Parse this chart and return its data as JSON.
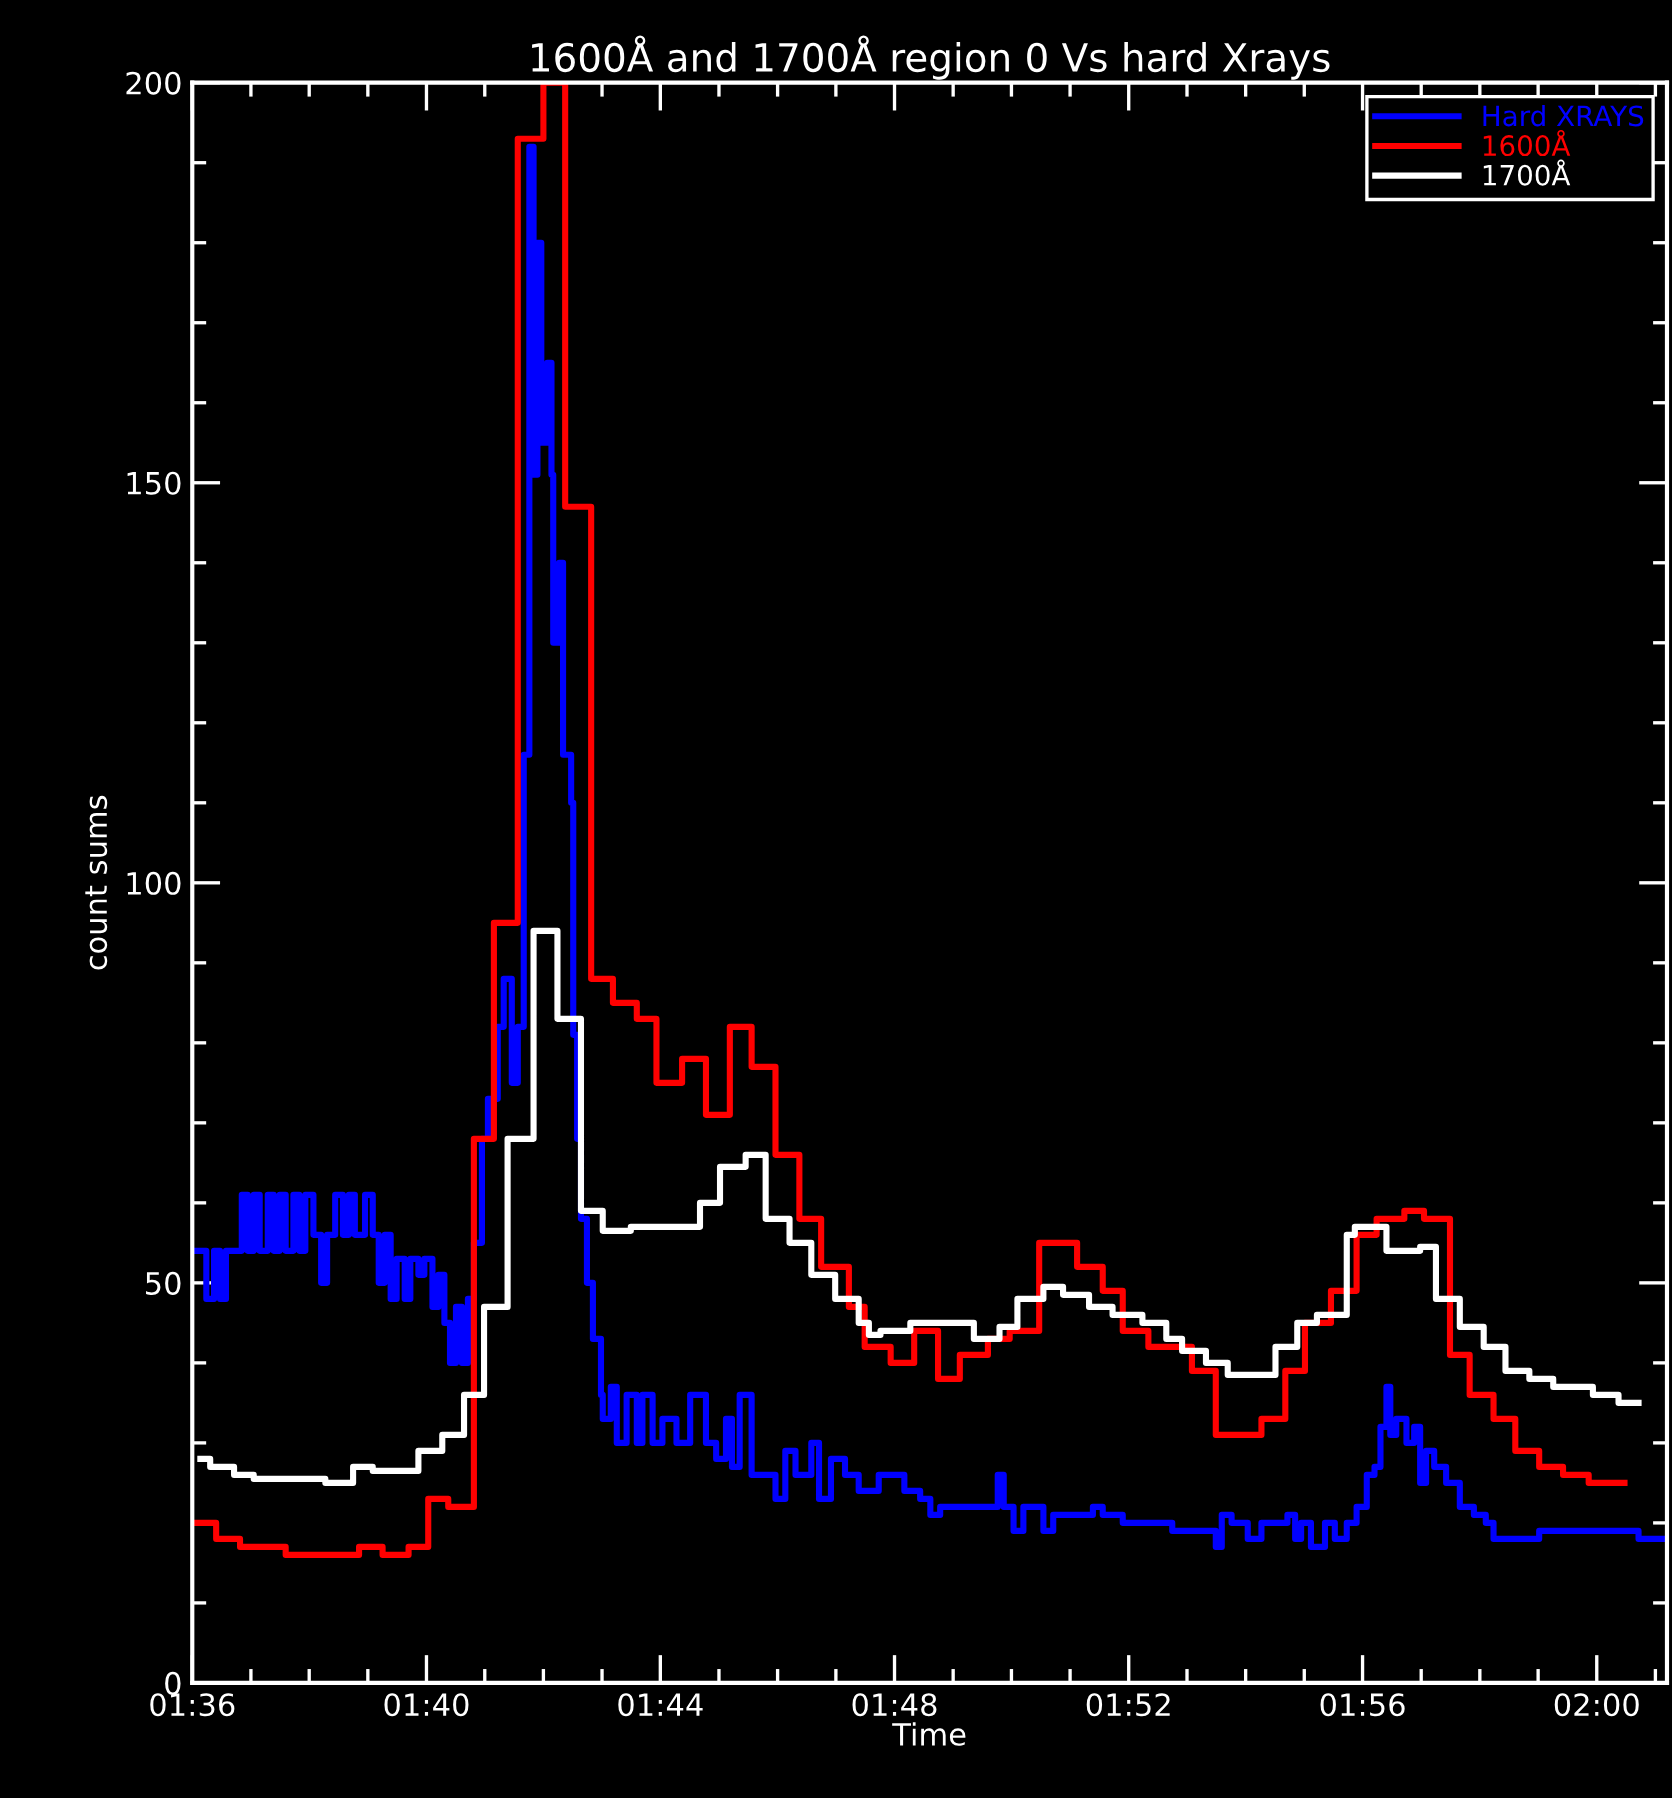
{
  "chart_data": {
    "type": "step",
    "title": "1600Å and 1700Å region 0 Vs hard Xrays",
    "xlabel": "Time",
    "ylabel": "count sums",
    "legend": "top right",
    "xlim": [
      1.6,
      2.02
    ],
    "ylim": [
      0,
      200
    ],
    "xticks": [
      {
        "value": 1.6,
        "label": "01:36"
      },
      {
        "value": 1.6167,
        "label": null
      },
      {
        "value": 1.6333,
        "label": null
      },
      {
        "value": 1.65,
        "label": null
      },
      {
        "value": 1.6667,
        "label": "01:40"
      },
      {
        "value": 1.6833,
        "label": null
      },
      {
        "value": 1.7,
        "label": null
      },
      {
        "value": 1.7167,
        "label": null
      },
      {
        "value": 1.7333,
        "label": "01:44"
      },
      {
        "value": 1.75,
        "label": null
      },
      {
        "value": 1.7667,
        "label": null
      },
      {
        "value": 1.7833,
        "label": null
      },
      {
        "value": 1.8,
        "label": "01:48"
      },
      {
        "value": 1.8167,
        "label": null
      },
      {
        "value": 1.8333,
        "label": null
      },
      {
        "value": 1.85,
        "label": null
      },
      {
        "value": 1.8667,
        "label": "01:52"
      },
      {
        "value": 1.8833,
        "label": null
      },
      {
        "value": 1.9,
        "label": null
      },
      {
        "value": 1.9167,
        "label": null
      },
      {
        "value": 1.9333,
        "label": "01:56"
      },
      {
        "value": 1.95,
        "label": null
      },
      {
        "value": 1.9667,
        "label": null
      },
      {
        "value": 1.9833,
        "label": null
      },
      {
        "value": 2.0,
        "label": "02:00"
      },
      {
        "value": 2.0167,
        "label": null
      }
    ],
    "yticks": [
      0,
      {
        "value": 10,
        "label": null
      },
      {
        "value": 20,
        "label": null
      },
      {
        "value": 30,
        "label": null
      },
      {
        "value": 40,
        "label": null
      },
      50,
      {
        "value": 60,
        "label": null
      },
      {
        "value": 70,
        "label": null
      },
      {
        "value": 80,
        "label": null
      },
      {
        "value": 90,
        "label": null
      },
      100,
      {
        "value": 110,
        "label": null
      },
      {
        "value": 120,
        "label": null
      },
      {
        "value": 130,
        "label": null
      },
      {
        "value": 140,
        "label": null
      },
      150,
      {
        "value": 160,
        "label": null
      },
      {
        "value": 170,
        "label": null
      },
      {
        "value": 180,
        "label": null
      },
      {
        "value": 190,
        "label": null
      },
      200
    ],
    "series": [
      {
        "name": "Hard XRAYS",
        "color": "#0000ff",
        "x": [
          1.6,
          1.604,
          1.6062,
          1.6079,
          1.6096,
          1.6141,
          1.6158,
          1.6175,
          1.6192,
          1.6215,
          1.6232,
          1.6249,
          1.6266,
          1.6288,
          1.6305,
          1.6322,
          1.6345,
          1.6367,
          1.6384,
          1.6407,
          1.6429,
          1.6446,
          1.6463,
          1.6492,
          1.6514,
          1.6531,
          1.6548,
          1.6565,
          1.6582,
          1.6605,
          1.6621,
          1.6644,
          1.6661,
          1.6684,
          1.6701,
          1.6718,
          1.6734,
          1.6751,
          1.6768,
          1.6785,
          1.6802,
          1.6825,
          1.6842,
          1.687,
          1.6887,
          1.691,
          1.6927,
          1.6944,
          1.696,
          1.6972,
          1.6983,
          1.6994,
          1.7011,
          1.7023,
          1.7028,
          1.7045,
          1.7056,
          1.7079,
          1.7085,
          1.7096,
          1.7107,
          1.7124,
          1.7141,
          1.7164,
          1.7169,
          1.7192,
          1.7209,
          1.7237,
          1.7266,
          1.7282,
          1.7311,
          1.7339,
          1.7379,
          1.7418,
          1.7463,
          1.7492,
          1.752,
          1.7537,
          1.7559,
          1.7593,
          1.7661,
          1.7689,
          1.7718,
          1.7763,
          1.7785,
          1.7819,
          1.7859,
          1.7898,
          1.7955,
          1.8028,
          1.8073,
          1.8102,
          1.813,
          1.8294,
          1.8311,
          1.8339,
          1.8367,
          1.8424,
          1.8452,
          1.8565,
          1.8593,
          1.865,
          1.8791,
          1.8915,
          1.8932,
          1.896,
          1.9006,
          1.9045,
          1.9119,
          1.9141,
          1.9158,
          1.9186,
          1.9226,
          1.9254,
          1.9288,
          1.9316,
          1.9345,
          1.9367,
          1.9384,
          1.9401,
          1.9412,
          1.9429,
          1.9458,
          1.948,
          1.9497,
          1.9514,
          1.9537,
          1.9571,
          1.961,
          1.965,
          1.9684,
          1.9706,
          1.9836,
          2.0119,
          2.0195
        ],
        "values": [
          54,
          48,
          54,
          48,
          54,
          61,
          54,
          61,
          54,
          61,
          54,
          61,
          54,
          61,
          54,
          61,
          56,
          50,
          56,
          61,
          56,
          61,
          56,
          61,
          56,
          50,
          56,
          48,
          53,
          48,
          53,
          51,
          53,
          47,
          51,
          45,
          40,
          47,
          40,
          48,
          55,
          68,
          73,
          82,
          88,
          75,
          82,
          116,
          192,
          151,
          180,
          155,
          165,
          151,
          130,
          140,
          116,
          110,
          81,
          68,
          58,
          50,
          43,
          36,
          33,
          37,
          30,
          36,
          30,
          36,
          30,
          33,
          30,
          36,
          30,
          28,
          33,
          27,
          36,
          26,
          23,
          29,
          26,
          30,
          23,
          28,
          26,
          24,
          26,
          24,
          23,
          21,
          22,
          26,
          22,
          19,
          22,
          19,
          21,
          22,
          21,
          20,
          19,
          17,
          21,
          20,
          18,
          20,
          21,
          18,
          20,
          17,
          20,
          18,
          20,
          22,
          26,
          27,
          32,
          37,
          31,
          33,
          30,
          32,
          25,
          29,
          27,
          25,
          22,
          21,
          20,
          18,
          19,
          18,
          18
        ]
      },
      {
        "name": "1600Å",
        "color": "#ff0000",
        "x": [
          1.6,
          1.6068,
          1.6136,
          1.6266,
          1.6475,
          1.6542,
          1.6616,
          1.6672,
          1.6729,
          1.6802,
          1.6859,
          1.6927,
          1.7,
          1.7062,
          1.7136,
          1.7198,
          1.7266,
          1.7322,
          1.7395,
          1.7463,
          1.7531,
          1.7593,
          1.7661,
          1.7729,
          1.7791,
          1.787,
          1.7915,
          1.7989,
          1.8056,
          1.8124,
          1.8186,
          1.8266,
          1.8328,
          1.8412,
          1.852,
          1.8593,
          1.865,
          1.8723,
          1.8847,
          1.8915,
          1.9045,
          1.9113,
          1.9169,
          1.9243,
          1.9316,
          1.9373,
          1.9452,
          1.9508,
          1.9582,
          1.9638,
          1.9706,
          1.9768,
          1.9836,
          1.9904,
          1.9977,
          2.0079
        ],
        "values": [
          20,
          18,
          17,
          16,
          17,
          16,
          17,
          23,
          22,
          68,
          95,
          193,
          200,
          147,
          88,
          85,
          83,
          75,
          78,
          71,
          82,
          77,
          66,
          58,
          52,
          47,
          42,
          40,
          44,
          38,
          41,
          43,
          44,
          55,
          52,
          49,
          44,
          42,
          39,
          31,
          33,
          39,
          45,
          49,
          56,
          58,
          59,
          58,
          41,
          36,
          33,
          29,
          27,
          26,
          25,
          25
        ]
      },
      {
        "name": "1700Å",
        "color": "#ffffff",
        "x": [
          1.6023,
          1.6051,
          1.6119,
          1.6175,
          1.6379,
          1.6458,
          1.6514,
          1.6644,
          1.6712,
          1.6774,
          1.6831,
          1.6898,
          1.6972,
          1.704,
          1.7107,
          1.7169,
          1.7249,
          1.7446,
          1.7503,
          1.7576,
          1.7633,
          1.7701,
          1.7763,
          1.7831,
          1.7898,
          1.7927,
          1.796,
          1.8045,
          1.8226,
          1.8299,
          1.835,
          1.8424,
          1.848,
          1.8554,
          1.8621,
          1.8706,
          1.8774,
          1.8819,
          1.8887,
          1.8949,
          1.9085,
          1.9147,
          1.9203,
          1.9288,
          1.9311,
          1.9401,
          1.9497,
          1.9542,
          1.961,
          1.9678,
          1.974,
          1.9808,
          1.9876,
          1.9989,
          2.0062,
          2.0119
        ],
        "values": [
          28,
          27,
          26,
          25.5,
          25,
          27,
          26.5,
          29,
          31,
          36,
          47,
          68,
          94,
          83,
          59,
          56.5,
          57,
          60,
          64.5,
          66,
          58,
          55,
          51,
          48,
          45,
          43.5,
          44,
          45,
          43,
          44.5,
          48,
          49.5,
          48.5,
          47,
          46,
          45,
          43,
          41.5,
          40,
          38.5,
          42,
          45,
          46,
          56,
          57,
          54,
          54.5,
          48,
          44.5,
          42,
          39,
          38,
          37,
          36,
          35,
          35
        ]
      }
    ]
  }
}
